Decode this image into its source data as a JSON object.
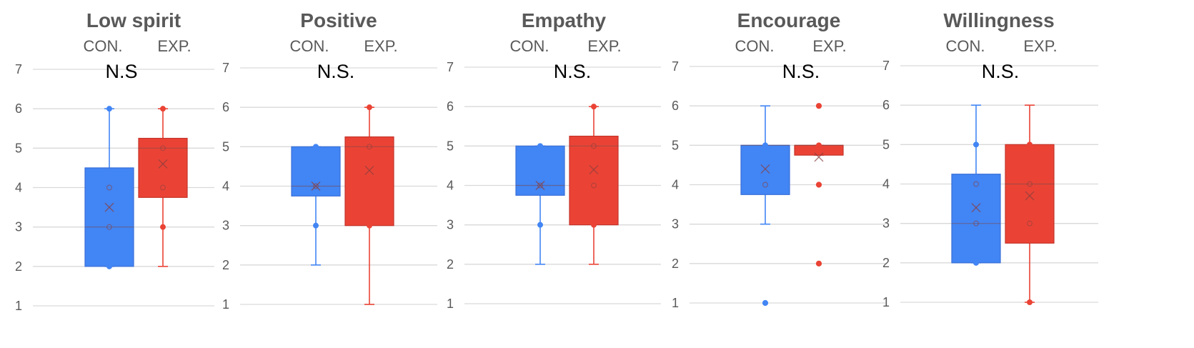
{
  "colors": {
    "control": "#4285f4",
    "control_edge": "#3a6fd8",
    "experiment": "#ea4335",
    "experiment_edge": "#c5332a",
    "grid": "#d9d9d9",
    "text": "#595959"
  },
  "chart_data": [
    {
      "type": "box",
      "title": "Low spirit",
      "groups": [
        "CON.",
        "EXP."
      ],
      "significance": "N.S",
      "ylim": [
        1,
        7
      ],
      "yticks": [
        "1",
        "2",
        "3",
        "4",
        "5",
        "6",
        "7"
      ],
      "grid": true,
      "series": [
        {
          "name": "CON.",
          "min": 2,
          "q1": 2,
          "median": 3,
          "q3": 4.5,
          "max": 6,
          "mean": 3.5,
          "points": [
            6,
            4,
            3,
            2
          ],
          "outliers": []
        },
        {
          "name": "EXP.",
          "min": 2,
          "q1": 3.75,
          "median": 5,
          "q3": 5.25,
          "max": 6,
          "mean": 4.6,
          "points": [
            6,
            5,
            4,
            3
          ],
          "outliers": []
        }
      ]
    },
    {
      "type": "box",
      "title": "Positive",
      "groups": [
        "CON.",
        "EXP."
      ],
      "significance": "N.S.",
      "ylim": [
        1,
        7
      ],
      "yticks": [
        "1",
        "2",
        "3",
        "4",
        "5",
        "6",
        "7"
      ],
      "grid": true,
      "series": [
        {
          "name": "CON.",
          "min": 2,
          "q1": 3.75,
          "median": 4,
          "q3": 5,
          "max": 5,
          "mean": 4.0,
          "points": [
            5,
            4,
            3
          ],
          "outliers": []
        },
        {
          "name": "EXP.",
          "min": 1,
          "q1": 3,
          "median": 5,
          "q3": 5.25,
          "max": 6,
          "mean": 4.4,
          "points": [
            6,
            5,
            3
          ],
          "outliers": []
        }
      ]
    },
    {
      "type": "box",
      "title": "Empathy",
      "groups": [
        "CON.",
        "EXP."
      ],
      "significance": "N.S.",
      "ylim": [
        1,
        7
      ],
      "yticks": [
        "1",
        "2",
        "3",
        "4",
        "5",
        "6",
        "7"
      ],
      "grid": true,
      "series": [
        {
          "name": "CON.",
          "min": 2,
          "q1": 3.75,
          "median": 4,
          "q3": 5,
          "max": 5,
          "mean": 4.0,
          "points": [
            5,
            4,
            3
          ],
          "outliers": []
        },
        {
          "name": "EXP.",
          "min": 2,
          "q1": 3,
          "median": 5,
          "q3": 5.25,
          "max": 6,
          "mean": 4.4,
          "points": [
            6,
            5,
            4,
            3
          ],
          "outliers": []
        }
      ]
    },
    {
      "type": "box",
      "title": "Encourage",
      "groups": [
        "CON.",
        "EXP."
      ],
      "significance": "N.S.",
      "ylim": [
        1,
        7
      ],
      "yticks": [
        "1",
        "2",
        "3",
        "4",
        "5",
        "6",
        "7"
      ],
      "grid": true,
      "series": [
        {
          "name": "CON.",
          "min": 3,
          "q1": 3.75,
          "median": 5,
          "q3": 5,
          "max": 6,
          "mean": 4.4,
          "points": [
            5,
            4
          ],
          "outliers": [
            1
          ]
        },
        {
          "name": "EXP.",
          "min": 4.75,
          "q1": 4.75,
          "median": 5,
          "q3": 5,
          "max": 5,
          "mean": 4.7,
          "points": [
            5
          ],
          "outliers": [
            6,
            4,
            2
          ]
        }
      ]
    },
    {
      "type": "box",
      "title": "Willingness",
      "groups": [
        "CON.",
        "EXP."
      ],
      "significance": "N.S.",
      "ylim": [
        1,
        7
      ],
      "yticks": [
        "1",
        "2",
        "3",
        "4",
        "5",
        "6",
        "7"
      ],
      "grid": true,
      "series": [
        {
          "name": "CON.",
          "min": 2,
          "q1": 2,
          "median": 3,
          "q3": 4.25,
          "max": 6,
          "mean": 3.4,
          "points": [
            5,
            4,
            3,
            2
          ],
          "outliers": []
        },
        {
          "name": "EXP.",
          "min": 1,
          "q1": 2.5,
          "median": 4,
          "q3": 5,
          "max": 6,
          "mean": 3.7,
          "points": [
            5,
            4,
            3,
            1
          ],
          "outliers": []
        }
      ]
    }
  ]
}
